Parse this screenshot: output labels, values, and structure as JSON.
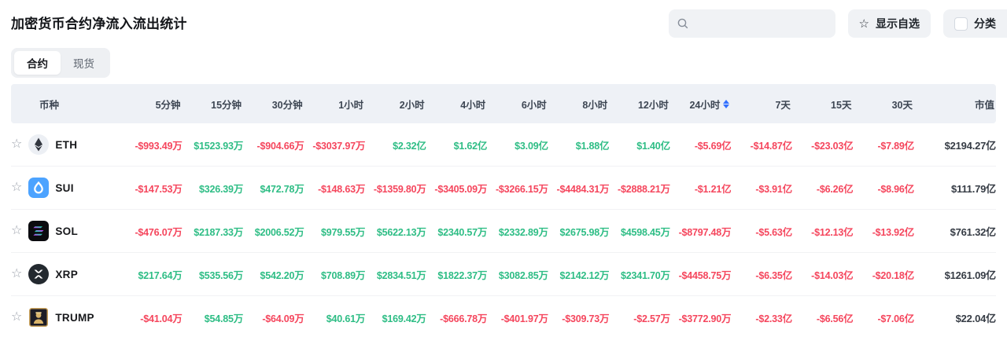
{
  "header": {
    "title": "加密货币合约净流入流出统计",
    "search_placeholder": "",
    "favorites_label": "显示自选",
    "category_label": "分类"
  },
  "tabs": [
    {
      "label": "合约",
      "active": true
    },
    {
      "label": "现货",
      "active": false
    }
  ],
  "colors": {
    "positive": "#2ebd85",
    "negative": "#f5465d",
    "sort_active": "#3370ff"
  },
  "table": {
    "columns": [
      "币种",
      "5分钟",
      "15分钟",
      "30分钟",
      "1小时",
      "2小时",
      "4小时",
      "6小时",
      "8小时",
      "12小时",
      "24小时",
      "7天",
      "15天",
      "30天",
      "市值"
    ],
    "sorted_column": "24小时",
    "rows": [
      {
        "symbol": "ETH",
        "icon": "eth-coin-icon",
        "values": [
          "-$993.49万",
          "$1523.93万",
          "-$904.66万",
          "-$3037.97万",
          "$2.32亿",
          "$1.62亿",
          "$3.09亿",
          "$1.88亿",
          "$1.40亿",
          "-$5.69亿",
          "-$14.87亿",
          "-$23.03亿",
          "-$7.89亿"
        ],
        "market_cap": "$2194.27亿"
      },
      {
        "symbol": "SUI",
        "icon": "sui-coin-icon",
        "values": [
          "-$147.53万",
          "$326.39万",
          "$472.78万",
          "-$148.63万",
          "-$1359.80万",
          "-$3405.09万",
          "-$3266.15万",
          "-$4484.31万",
          "-$2888.21万",
          "-$1.21亿",
          "-$3.91亿",
          "-$6.26亿",
          "-$8.96亿"
        ],
        "market_cap": "$111.79亿"
      },
      {
        "symbol": "SOL",
        "icon": "sol-coin-icon",
        "values": [
          "-$476.07万",
          "$2187.33万",
          "$2006.52万",
          "$979.55万",
          "$5622.13万",
          "$2340.57万",
          "$2332.89万",
          "$2675.98万",
          "$4598.45万",
          "-$8797.48万",
          "-$5.63亿",
          "-$12.13亿",
          "-$13.92亿"
        ],
        "market_cap": "$761.32亿"
      },
      {
        "symbol": "XRP",
        "icon": "xrp-coin-icon",
        "values": [
          "$217.64万",
          "$535.56万",
          "$542.20万",
          "$708.89万",
          "$2834.51万",
          "$1822.37万",
          "$3082.85万",
          "$2142.12万",
          "$2341.70万",
          "-$4458.75万",
          "-$6.35亿",
          "-$14.03亿",
          "-$20.18亿"
        ],
        "market_cap": "$1261.09亿"
      },
      {
        "symbol": "TRUMP",
        "icon": "trump-coin-icon",
        "values": [
          "-$41.04万",
          "$54.85万",
          "-$64.09万",
          "$40.61万",
          "$169.42万",
          "-$666.78万",
          "-$401.97万",
          "-$309.73万",
          "-$2.57万",
          "-$3772.90万",
          "-$2.33亿",
          "-$6.56亿",
          "-$7.06亿"
        ],
        "market_cap": "$22.04亿"
      }
    ]
  }
}
